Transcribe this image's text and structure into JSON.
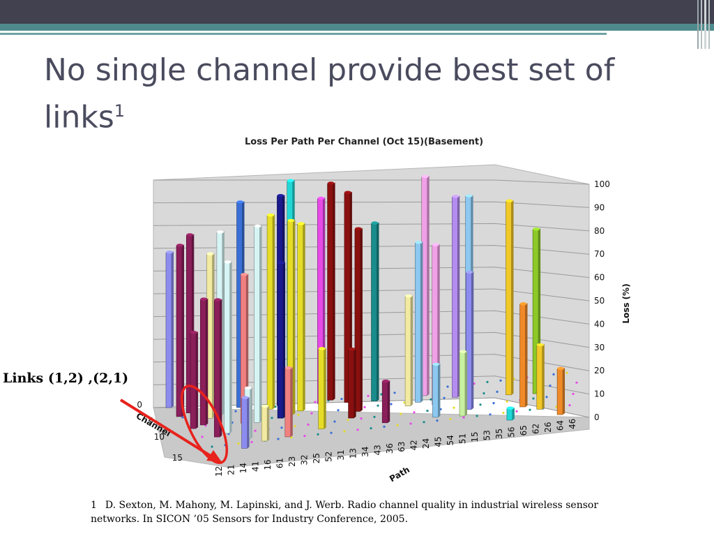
{
  "slide": {
    "title": "No single channel provide best set of links",
    "title_superscript": "1",
    "callout": "Links (1,2) ,(2,1)",
    "footnote_number": "1",
    "footnote_text": "D. Sexton, M. Mahony, M. Lapinski, and J. Werb. Radio channel quality in industrial wireless sensor networks. In SICON ’05 Sensors for Industry Conference, 2005."
  },
  "colors": {
    "topbar": "#41414f",
    "accent_teal": "#4e8a8c",
    "title_text": "#4a4b5e",
    "callout_ellipse": "#e8221c"
  },
  "chart_data": {
    "type": "bar",
    "style": "3d-column",
    "title": "Loss Per Path Per Channel (Oct 15)(Basement)",
    "zlabel": "Loss (%)",
    "xlabel": "Path",
    "ylabel": "Channel",
    "zlim": [
      0,
      100
    ],
    "z_ticks": [
      "0",
      "10",
      "20",
      "30",
      "40",
      "50",
      "60",
      "70",
      "80",
      "90",
      "100"
    ],
    "channel_ticks": [
      "0",
      "5",
      "10",
      "15"
    ],
    "path_ticks": [
      "12",
      "21",
      "14",
      "41",
      "16",
      "61",
      "23",
      "32",
      "25",
      "52",
      "31",
      "13",
      "34",
      "43",
      "36",
      "63",
      "42",
      "24",
      "45",
      "54",
      "51",
      "15",
      "53",
      "35",
      "56",
      "65",
      "62",
      "26",
      "64",
      "46"
    ],
    "grid": true,
    "series_note": "approximate column heights read from the 3D plot",
    "bars": [
      {
        "path": 1,
        "channel": 0,
        "value": 68,
        "color": "#8c8cf0"
      },
      {
        "path": 1,
        "channel": 3,
        "value": 75,
        "color": "#8a1f5a"
      },
      {
        "path": 1,
        "channel": 7,
        "value": 42,
        "color": "#8a1f5a"
      },
      {
        "path": 2,
        "channel": 2,
        "value": 78,
        "color": "#8a1f5a"
      },
      {
        "path": 2,
        "channel": 6,
        "value": 55,
        "color": "#8a1f5a"
      },
      {
        "path": 2,
        "channel": 10,
        "value": 60,
        "color": "#8a1f5a"
      },
      {
        "path": 3,
        "channel": 4,
        "value": 72,
        "color": "#f2eaa0"
      },
      {
        "path": 3,
        "channel": 9,
        "value": 75,
        "color": "#d6f4f4"
      },
      {
        "path": 3,
        "channel": 14,
        "value": 22,
        "color": "#8c8cf0"
      },
      {
        "path": 4,
        "channel": 3,
        "value": 80,
        "color": "#d6f4f4"
      },
      {
        "path": 4,
        "channel": 11,
        "value": 22,
        "color": "#d6f4f4"
      },
      {
        "path": 5,
        "channel": 6,
        "value": 65,
        "color": "#f08080"
      },
      {
        "path": 5,
        "channel": 12,
        "value": 15,
        "color": "#f2eaa0"
      },
      {
        "path": 6,
        "channel": 1,
        "value": 90,
        "color": "#3a6fd6"
      },
      {
        "path": 6,
        "channel": 6,
        "value": 86,
        "color": "#d6f4f4"
      },
      {
        "path": 7,
        "channel": 11,
        "value": 30,
        "color": "#f08080"
      },
      {
        "path": 8,
        "channel": 2,
        "value": 85,
        "color": "#e6dc28"
      },
      {
        "path": 8,
        "channel": 5,
        "value": 68,
        "color": "#1a1a8c"
      },
      {
        "path": 9,
        "channel": 1,
        "value": 92,
        "color": "#1a1a8c"
      },
      {
        "path": 9,
        "channel": 4,
        "value": 85,
        "color": "#e6dc28"
      },
      {
        "path": 10,
        "channel": 0,
        "value": 97,
        "color": "#22d6d6"
      },
      {
        "path": 10,
        "channel": 3,
        "value": 82,
        "color": "#e6dc28"
      },
      {
        "path": 10,
        "channel": 9,
        "value": 35,
        "color": "#e6dc28"
      },
      {
        "path": 12,
        "channel": 1,
        "value": 90,
        "color": "#e64ae6"
      },
      {
        "path": 13,
        "channel": 0,
        "value": 95,
        "color": "#8a1010"
      },
      {
        "path": 13,
        "channel": 6,
        "value": 30,
        "color": "#8a1010"
      },
      {
        "path": 14,
        "channel": 1,
        "value": 92,
        "color": "#8a1010"
      },
      {
        "path": 14,
        "channel": 4,
        "value": 80,
        "color": "#8a1010"
      },
      {
        "path": 15,
        "channel": 8,
        "value": 18,
        "color": "#8a1f5a"
      },
      {
        "path": 16,
        "channel": 1,
        "value": 78,
        "color": "#1a8c8c"
      },
      {
        "path": 18,
        "channel": 3,
        "value": 48,
        "color": "#f2eaa0"
      },
      {
        "path": 19,
        "channel": 2,
        "value": 70,
        "color": "#8cc8f0"
      },
      {
        "path": 19,
        "channel": 7,
        "value": 23,
        "color": "#8cc8f0"
      },
      {
        "path": 20,
        "channel": 0,
        "value": 96,
        "color": "#f0a0e6"
      },
      {
        "path": 20,
        "channel": 3,
        "value": 70,
        "color": "#f0a0e6"
      },
      {
        "path": 21,
        "channel": 7,
        "value": 28,
        "color": "#c8f0a0"
      },
      {
        "path": 22,
        "channel": 1,
        "value": 88,
        "color": "#b48cf0"
      },
      {
        "path": 22,
        "channel": 5,
        "value": 60,
        "color": "#8c8cf0"
      },
      {
        "path": 23,
        "channel": 1,
        "value": 88,
        "color": "#8cc8f0"
      },
      {
        "path": 24,
        "channel": 9,
        "value": 5,
        "color": "#22d6d6"
      },
      {
        "path": 26,
        "channel": 1,
        "value": 85,
        "color": "#f0c828"
      },
      {
        "path": 26,
        "channel": 5,
        "value": 45,
        "color": "#f08a28"
      },
      {
        "path": 27,
        "channel": 6,
        "value": 28,
        "color": "#f0c828"
      },
      {
        "path": 28,
        "channel": 1,
        "value": 72,
        "color": "#8cc828"
      },
      {
        "path": 28,
        "channel": 8,
        "value": 20,
        "color": "#f08a28"
      }
    ]
  }
}
